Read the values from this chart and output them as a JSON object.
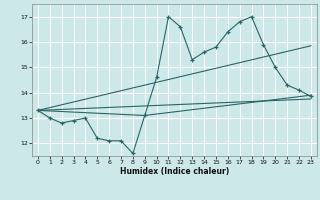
{
  "bg_color": "#cce8e8",
  "grid_color": "#ffffff",
  "line_color": "#2a6464",
  "xlabel": "Humidex (Indice chaleur)",
  "ylim": [
    11.5,
    17.5
  ],
  "xlim": [
    -0.5,
    23.5
  ],
  "yticks": [
    12,
    13,
    14,
    15,
    16,
    17
  ],
  "xticks": [
    0,
    1,
    2,
    3,
    4,
    5,
    6,
    7,
    8,
    9,
    10,
    11,
    12,
    13,
    14,
    15,
    16,
    17,
    18,
    19,
    20,
    21,
    22,
    23
  ],
  "series1_x": [
    0,
    1,
    2,
    3,
    4,
    5,
    6,
    7,
    8,
    9,
    10,
    11,
    12,
    13,
    14,
    15,
    16,
    17,
    18,
    19,
    20,
    21,
    22,
    23
  ],
  "series1_y": [
    13.3,
    13.0,
    12.8,
    12.9,
    13.0,
    12.2,
    12.1,
    12.1,
    11.6,
    13.1,
    14.6,
    17.0,
    16.6,
    15.3,
    15.6,
    15.8,
    16.4,
    16.8,
    17.0,
    15.9,
    15.0,
    14.3,
    14.1,
    13.85
  ],
  "series2_x": [
    0,
    23
  ],
  "series2_y": [
    13.3,
    13.75
  ],
  "series3_x": [
    0,
    23
  ],
  "series3_y": [
    13.3,
    15.85
  ],
  "series4_x": [
    0,
    9,
    23
  ],
  "series4_y": [
    13.3,
    13.1,
    13.9
  ]
}
